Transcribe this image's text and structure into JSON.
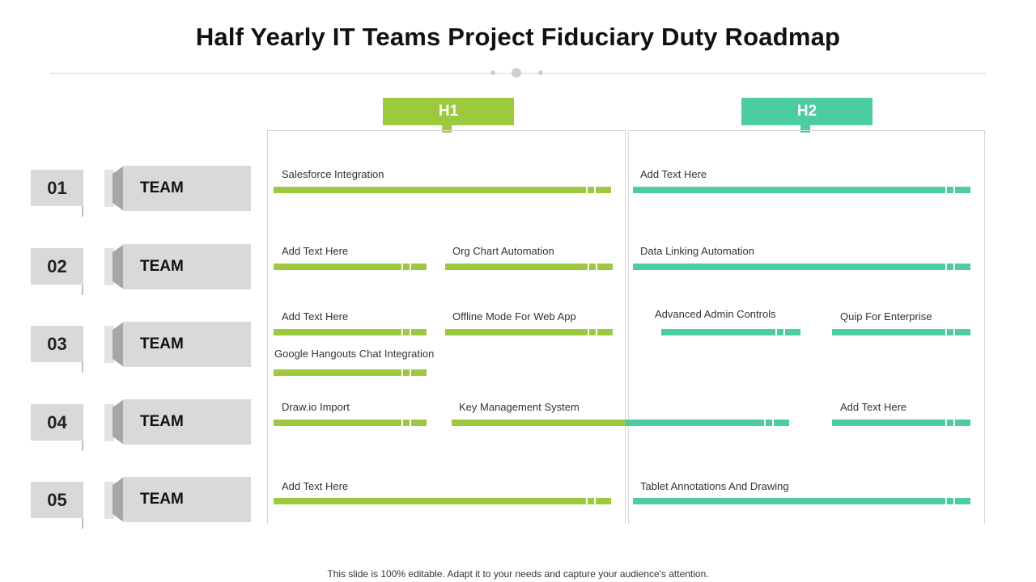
{
  "title": "Half Yearly IT Teams Project Fiduciary Duty Roadmap",
  "colors": {
    "h1": "#9cc93e",
    "h2": "#4ccda0"
  },
  "phases": [
    {
      "label": "H1"
    },
    {
      "label": "H2"
    }
  ],
  "rows": [
    {
      "number": "01",
      "team": "TEAM"
    },
    {
      "number": "02",
      "team": "TEAM"
    },
    {
      "number": "03",
      "team": "TEAM"
    },
    {
      "number": "04",
      "team": "TEAM"
    },
    {
      "number": "05",
      "team": "TEAM"
    }
  ],
  "tasks": [
    {
      "label": "Salesforce Integration",
      "phase": "H1"
    },
    {
      "label": "Add Text Here",
      "phase": "H2"
    },
    {
      "label": "Add Text Here",
      "phase": "H1"
    },
    {
      "label": "Org Chart Automation",
      "phase": "H1"
    },
    {
      "label": "Data Linking Automation",
      "phase": "H2"
    },
    {
      "label": "Add Text Here",
      "phase": "H1"
    },
    {
      "label": "Offline Mode For Web App",
      "phase": "H1"
    },
    {
      "label": "Advanced Admin Controls",
      "phase": "H2"
    },
    {
      "label": "Quip For Enterprise",
      "phase": "H2"
    },
    {
      "label": "Google Hangouts Chat Integration",
      "phase": "H1"
    },
    {
      "label": "Draw.io Import",
      "phase": "H1"
    },
    {
      "label": "Key Management System",
      "phase": "H1-H2"
    },
    {
      "label": "Add Text Here",
      "phase": "H2"
    },
    {
      "label": "Add Text Here",
      "phase": "H1"
    },
    {
      "label": "Tablet Annotations And Drawing",
      "phase": "H2"
    }
  ],
  "footer": "This slide is 100% editable. Adapt it to your needs and capture your audience's attention."
}
